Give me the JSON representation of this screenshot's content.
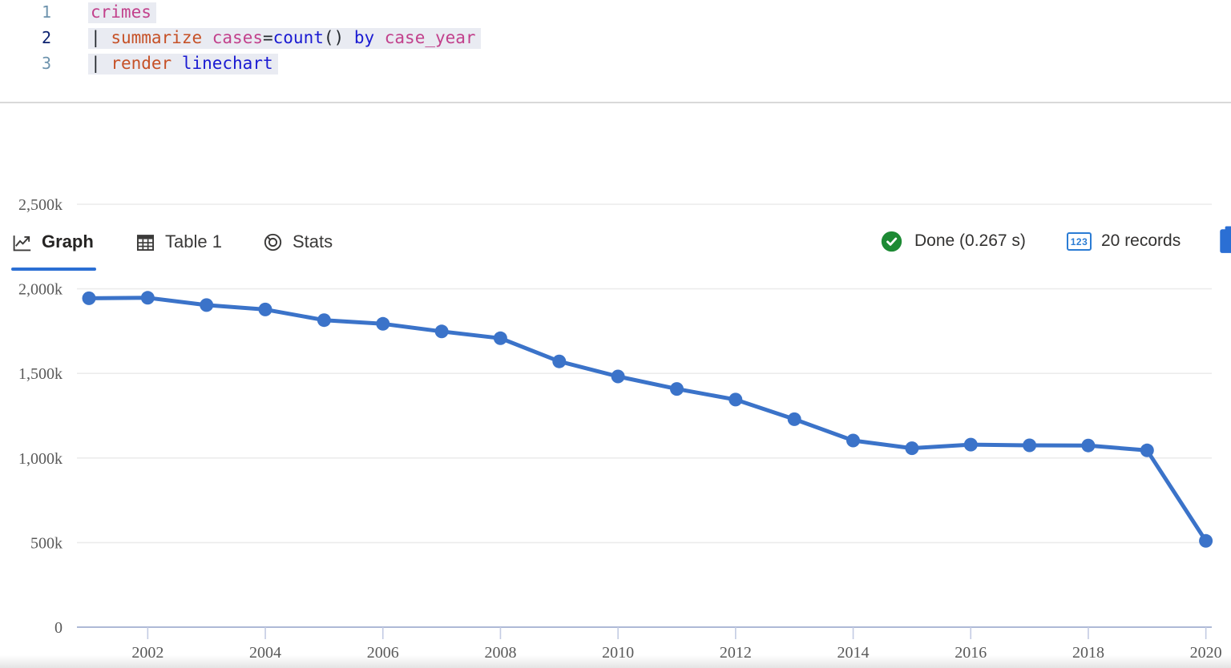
{
  "colors": {
    "accent": "#2b6fd4",
    "badge_blue": "#2b7cd4",
    "success_green": "#1d8a34",
    "series_blue": "#3b73c9",
    "grid": "#ececec",
    "axis": "#aeb9d6",
    "axis_label": "#595959"
  },
  "editor": {
    "lines": [
      {
        "number": "1",
        "active": false,
        "tokens": [
          {
            "text": "crimes",
            "type": "name"
          }
        ]
      },
      {
        "number": "2",
        "active": true,
        "tokens": [
          {
            "text": "|",
            "type": "plain"
          },
          {
            "text": " ",
            "type": "plain"
          },
          {
            "text": "summarize",
            "type": "op"
          },
          {
            "text": " ",
            "type": "plain"
          },
          {
            "text": "cases",
            "type": "name"
          },
          {
            "text": "=",
            "type": "plain"
          },
          {
            "text": "count",
            "type": "kw"
          },
          {
            "text": "()",
            "type": "plain"
          },
          {
            "text": " ",
            "type": "plain"
          },
          {
            "text": "by",
            "type": "kw"
          },
          {
            "text": " ",
            "type": "plain"
          },
          {
            "text": "case_year",
            "type": "name"
          }
        ]
      },
      {
        "number": "3",
        "active": false,
        "tokens": [
          {
            "text": "|",
            "type": "plain"
          },
          {
            "text": " ",
            "type": "plain"
          },
          {
            "text": "render",
            "type": "op"
          },
          {
            "text": " ",
            "type": "plain"
          },
          {
            "text": "linechart",
            "type": "kw"
          }
        ]
      }
    ]
  },
  "tabs": [
    {
      "label": "Graph",
      "active": true
    },
    {
      "label": "Table 1",
      "active": false
    },
    {
      "label": "Stats",
      "active": false
    }
  ],
  "status": {
    "done_label": "Done (0.267 s)",
    "badge_label": "123",
    "records_label": "20 records"
  },
  "chart_data": {
    "type": "line",
    "title": "",
    "xlabel": "",
    "ylabel": "",
    "x_field": "case_year",
    "y_field": "cases",
    "grid": true,
    "legend": "none",
    "ylim": [
      0,
      2500000
    ],
    "x": [
      2001,
      2002,
      2003,
      2004,
      2005,
      2006,
      2007,
      2008,
      2009,
      2010,
      2011,
      2012,
      2013,
      2014,
      2015,
      2016,
      2017,
      2018,
      2019,
      2020
    ],
    "series": [
      {
        "name": "cases",
        "color": "#3b73c9",
        "values": [
          1944000,
          1947000,
          1904000,
          1878000,
          1815000,
          1793000,
          1748000,
          1708000,
          1571000,
          1482000,
          1408000,
          1345000,
          1229000,
          1103000,
          1058000,
          1079000,
          1075000,
          1074000,
          1045000,
          510000
        ]
      }
    ],
    "y_ticks": [
      {
        "value": 0,
        "label": "0"
      },
      {
        "value": 500000,
        "label": "500k"
      },
      {
        "value": 1000000,
        "label": "1,000k"
      },
      {
        "value": 1500000,
        "label": "1,500k"
      },
      {
        "value": 2000000,
        "label": "2,000k"
      },
      {
        "value": 2500000,
        "label": "2,500k"
      }
    ],
    "x_ticks": [
      {
        "value": 2002,
        "label": "2002"
      },
      {
        "value": 2004,
        "label": "2004"
      },
      {
        "value": 2006,
        "label": "2006"
      },
      {
        "value": 2008,
        "label": "2008"
      },
      {
        "value": 2010,
        "label": "2010"
      },
      {
        "value": 2012,
        "label": "2012"
      },
      {
        "value": 2014,
        "label": "2014"
      },
      {
        "value": 2016,
        "label": "2016"
      },
      {
        "value": 2018,
        "label": "2018"
      },
      {
        "value": 2020,
        "label": "2020"
      }
    ]
  }
}
